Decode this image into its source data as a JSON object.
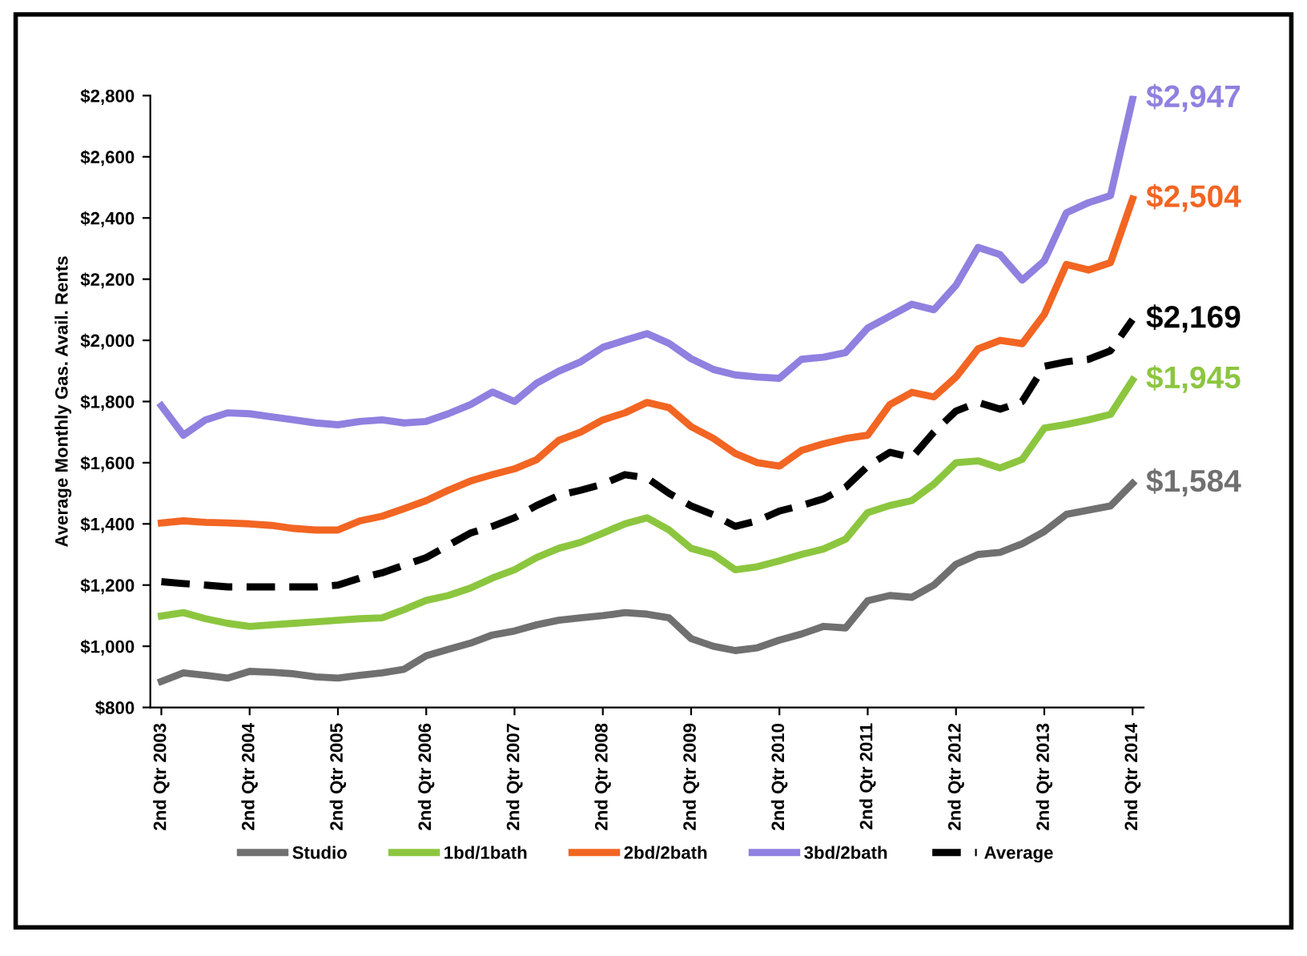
{
  "chart_data": {
    "type": "line",
    "ylabel": "Average Monthly Gas. Avail. Rents",
    "categories": [
      "2nd Qtr 2003",
      null,
      null,
      null,
      "2nd Qtr 2004",
      null,
      null,
      null,
      "2nd Qtr 2005",
      null,
      null,
      null,
      "2nd Qtr 2006",
      null,
      null,
      null,
      "2nd Qtr 2007",
      null,
      null,
      null,
      "2nd Qtr 2008",
      null,
      null,
      null,
      "2nd Qtr 2009",
      null,
      null,
      null,
      "2nd Qtr 2010",
      null,
      null,
      null,
      "2nd Qtr 2011",
      null,
      null,
      null,
      "2nd Qtr 2012",
      null,
      null,
      null,
      "2nd Qtr 2013",
      null,
      null,
      null,
      "2nd Qtr 2014"
    ],
    "series": [
      {
        "name": "Studio",
        "color": "#707070",
        "values": [
          885,
          913,
          905,
          896,
          918,
          915,
          910,
          900,
          896,
          905,
          913,
          925,
          969,
          990,
          1010,
          1037,
          1050,
          1070,
          1085,
          1093,
          1100,
          1110,
          1105,
          1093,
          1025,
          1000,
          986,
          995,
          1020,
          1040,
          1065,
          1060,
          1149,
          1166,
          1160,
          1200,
          1268,
          1300,
          1307,
          1335,
          1375,
          1431,
          1445,
          1459,
          1532
        ]
      },
      {
        "name": "1bd/1bath",
        "color": "#8cc63f",
        "values": [
          1099,
          1110,
          1090,
          1075,
          1065,
          1070,
          1075,
          1080,
          1085,
          1090,
          1093,
          1120,
          1150,
          1166,
          1190,
          1223,
          1250,
          1290,
          1320,
          1340,
          1370,
          1400,
          1420,
          1380,
          1320,
          1300,
          1250,
          1260,
          1279,
          1300,
          1318,
          1350,
          1437,
          1460,
          1476,
          1530,
          1600,
          1606,
          1583,
          1611,
          1713,
          1725,
          1740,
          1758,
          1870
        ]
      },
      {
        "name": "2bd/2bath",
        "color": "#f26522",
        "values": [
          1403,
          1410,
          1405,
          1403,
          1400,
          1395,
          1385,
          1380,
          1380,
          1410,
          1425,
          1450,
          1476,
          1510,
          1540,
          1561,
          1580,
          1610,
          1673,
          1700,
          1740,
          1763,
          1797,
          1780,
          1718,
          1680,
          1630,
          1600,
          1589,
          1640,
          1662,
          1679,
          1690,
          1790,
          1830,
          1815,
          1880,
          1972,
          2000,
          1989,
          2085,
          2248,
          2230,
          2254,
          2462
        ]
      },
      {
        "name": "3bd/2bath",
        "color": "#9080e0",
        "values": [
          1786,
          1690,
          1740,
          1763,
          1760,
          1750,
          1740,
          1730,
          1724,
          1735,
          1740,
          1730,
          1735,
          1760,
          1790,
          1831,
          1800,
          1860,
          1899,
          1930,
          1977,
          2000,
          2022,
          1990,
          1940,
          1905,
          1887,
          1880,
          1876,
          1938,
          1945,
          1960,
          2040,
          2079,
          2118,
          2100,
          2180,
          2304,
          2280,
          2197,
          2260,
          2417,
          2450,
          2473,
          2789
        ]
      },
      {
        "name": "Average",
        "color": "#000000",
        "line_style": "dashed",
        "values": [
          1211,
          1205,
          1200,
          1194,
          1194,
          1194,
          1194,
          1194,
          1200,
          1223,
          1240,
          1265,
          1290,
          1330,
          1370,
          1392,
          1420,
          1460,
          1493,
          1510,
          1530,
          1561,
          1550,
          1500,
          1459,
          1430,
          1392,
          1410,
          1442,
          1460,
          1482,
          1520,
          1589,
          1634,
          1617,
          1700,
          1769,
          1797,
          1775,
          1800,
          1915,
          1930,
          1938,
          1966,
          2068
        ]
      }
    ],
    "annotations": [
      "$1,584",
      "$1,945",
      "$2,504",
      "$2,947",
      "$2,169"
    ],
    "ylim": [
      800,
      2800
    ],
    "yticks": [
      {
        "value": 800,
        "label": "$800"
      },
      {
        "value": 1000,
        "label": "$1,000"
      },
      {
        "value": 1200,
        "label": "$1,200"
      },
      {
        "value": 1400,
        "label": "$1,400"
      },
      {
        "value": 1600,
        "label": "$1,600"
      },
      {
        "value": 1800,
        "label": "$1,800"
      },
      {
        "value": 2000,
        "label": "$2,000"
      },
      {
        "value": 2200,
        "label": "$2,200"
      },
      {
        "value": 2400,
        "label": "$2,400"
      },
      {
        "value": 2600,
        "label": "$2,600"
      },
      {
        "value": 2800,
        "label": "$2,800"
      }
    ],
    "legend": "bottom",
    "line_style": "solid"
  }
}
